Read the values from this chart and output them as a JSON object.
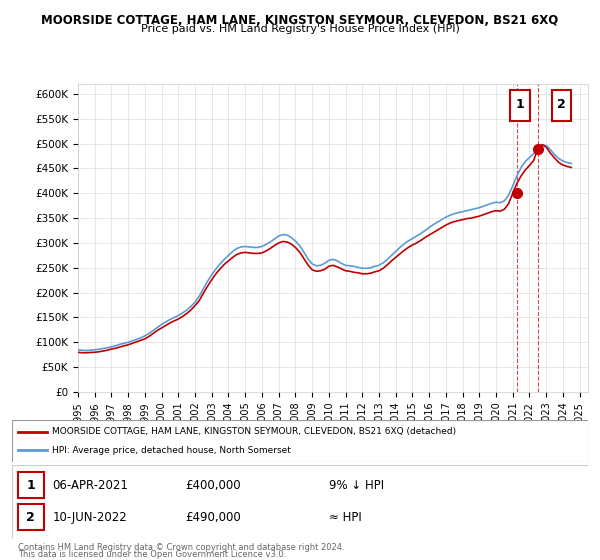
{
  "title": "MOORSIDE COTTAGE, HAM LANE, KINGSTON SEYMOUR, CLEVEDON, BS21 6XQ",
  "subtitle": "Price paid vs. HM Land Registry's House Price Index (HPI)",
  "legend_line1": "MOORSIDE COTTAGE, HAM LANE, KINGSTON SEYMOUR, CLEVEDON, BS21 6XQ (detached)",
  "legend_line2": "HPI: Average price, detached house, North Somerset",
  "sale1_label": "1",
  "sale1_date": "06-APR-2021",
  "sale1_price": "£400,000",
  "sale1_note": "9% ↓ HPI",
  "sale2_label": "2",
  "sale2_date": "10-JUN-2022",
  "sale2_price": "£490,000",
  "sale2_note": "≈ HPI",
  "footer": "Contains HM Land Registry data © Crown copyright and database right 2024.\nThis data is licensed under the Open Government Licence v3.0.",
  "hpi_color": "#5b9bd5",
  "price_color": "#c00000",
  "sale_marker_color": "#c00000",
  "annotation_box_color": "#c00000",
  "ylim": [
    0,
    620000
  ],
  "yticks": [
    0,
    50000,
    100000,
    150000,
    200000,
    250000,
    300000,
    350000,
    400000,
    450000,
    500000,
    550000,
    600000
  ],
  "ytick_labels": [
    "£0",
    "£50K",
    "£100K",
    "£150K",
    "£200K",
    "£250K",
    "£300K",
    "£350K",
    "£400K",
    "£450K",
    "£500K",
    "£550K",
    "£600K"
  ],
  "hpi_years": [
    1995.0,
    1995.25,
    1995.5,
    1995.75,
    1996.0,
    1996.25,
    1996.5,
    1996.75,
    1997.0,
    1997.25,
    1997.5,
    1997.75,
    1998.0,
    1998.25,
    1998.5,
    1998.75,
    1999.0,
    1999.25,
    1999.5,
    1999.75,
    2000.0,
    2000.25,
    2000.5,
    2000.75,
    2001.0,
    2001.25,
    2001.5,
    2001.75,
    2002.0,
    2002.25,
    2002.5,
    2002.75,
    2003.0,
    2003.25,
    2003.5,
    2003.75,
    2004.0,
    2004.25,
    2004.5,
    2004.75,
    2005.0,
    2005.25,
    2005.5,
    2005.75,
    2006.0,
    2006.25,
    2006.5,
    2006.75,
    2007.0,
    2007.25,
    2007.5,
    2007.75,
    2008.0,
    2008.25,
    2008.5,
    2008.75,
    2009.0,
    2009.25,
    2009.5,
    2009.75,
    2010.0,
    2010.25,
    2010.5,
    2010.75,
    2011.0,
    2011.25,
    2011.5,
    2011.75,
    2012.0,
    2012.25,
    2012.5,
    2012.75,
    2013.0,
    2013.25,
    2013.5,
    2013.75,
    2014.0,
    2014.25,
    2014.5,
    2014.75,
    2015.0,
    2015.25,
    2015.5,
    2015.75,
    2016.0,
    2016.25,
    2016.5,
    2016.75,
    2017.0,
    2017.25,
    2017.5,
    2017.75,
    2018.0,
    2018.25,
    2018.5,
    2018.75,
    2019.0,
    2019.25,
    2019.5,
    2019.75,
    2020.0,
    2020.25,
    2020.5,
    2020.75,
    2021.0,
    2021.25,
    2021.5,
    2021.75,
    2022.0,
    2022.25,
    2022.5,
    2022.75,
    2023.0,
    2023.25,
    2023.5,
    2023.75,
    2024.0,
    2024.25,
    2024.5
  ],
  "hpi_values": [
    85000,
    84000,
    83500,
    84000,
    85000,
    86000,
    87500,
    89000,
    91000,
    93000,
    96000,
    98000,
    100000,
    103000,
    106000,
    109000,
    113000,
    118000,
    124000,
    130000,
    136000,
    141000,
    146000,
    150000,
    154000,
    159000,
    165000,
    172000,
    181000,
    193000,
    208000,
    223000,
    236000,
    248000,
    258000,
    267000,
    275000,
    283000,
    289000,
    292000,
    293000,
    292000,
    291000,
    291000,
    293000,
    297000,
    302000,
    308000,
    314000,
    317000,
    316000,
    311000,
    304000,
    295000,
    282000,
    268000,
    258000,
    254000,
    255000,
    259000,
    265000,
    267000,
    264000,
    259000,
    255000,
    254000,
    253000,
    251000,
    249000,
    249000,
    250000,
    253000,
    255000,
    260000,
    267000,
    275000,
    283000,
    291000,
    298000,
    304000,
    309000,
    314000,
    319000,
    325000,
    331000,
    337000,
    342000,
    347000,
    352000,
    356000,
    359000,
    361000,
    363000,
    365000,
    367000,
    369000,
    371000,
    374000,
    377000,
    380000,
    382000,
    381000,
    385000,
    396000,
    415000,
    435000,
    452000,
    464000,
    472000,
    480000,
    490000,
    498000,
    496000,
    488000,
    478000,
    470000,
    465000,
    462000,
    460000
  ],
  "price_years": [
    1995.0,
    1995.25,
    1995.5,
    1995.75,
    1996.0,
    1996.25,
    1996.5,
    1996.75,
    1997.0,
    1997.25,
    1997.5,
    1997.75,
    1998.0,
    1998.25,
    1998.5,
    1998.75,
    1999.0,
    1999.25,
    1999.5,
    1999.75,
    2000.0,
    2000.25,
    2000.5,
    2000.75,
    2001.0,
    2001.25,
    2001.5,
    2001.75,
    2002.0,
    2002.25,
    2002.5,
    2002.75,
    2003.0,
    2003.25,
    2003.5,
    2003.75,
    2004.0,
    2004.25,
    2004.5,
    2004.75,
    2005.0,
    2005.25,
    2005.5,
    2005.75,
    2006.0,
    2006.25,
    2006.5,
    2006.75,
    2007.0,
    2007.25,
    2007.5,
    2007.75,
    2008.0,
    2008.25,
    2008.5,
    2008.75,
    2009.0,
    2009.25,
    2009.5,
    2009.75,
    2010.0,
    2010.25,
    2010.5,
    2010.75,
    2011.0,
    2011.25,
    2011.5,
    2011.75,
    2012.0,
    2012.25,
    2012.5,
    2012.75,
    2013.0,
    2013.25,
    2013.5,
    2013.75,
    2014.0,
    2014.25,
    2014.5,
    2014.75,
    2015.0,
    2015.25,
    2015.5,
    2015.75,
    2016.0,
    2016.25,
    2016.5,
    2016.75,
    2017.0,
    2017.25,
    2017.5,
    2017.75,
    2018.0,
    2018.25,
    2018.5,
    2018.75,
    2019.0,
    2019.25,
    2019.5,
    2019.75,
    2020.0,
    2020.25,
    2020.5,
    2020.75,
    2021.0,
    2021.25,
    2021.5,
    2021.75,
    2022.0,
    2022.25,
    2022.5,
    2022.75,
    2023.0,
    2023.25,
    2023.5,
    2023.75,
    2024.0,
    2024.25,
    2024.5
  ],
  "price_values": [
    80000,
    79000,
    79000,
    79500,
    80000,
    81000,
    82500,
    84000,
    86500,
    88000,
    90500,
    93000,
    95000,
    98000,
    101000,
    104000,
    107000,
    112000,
    118000,
    124000,
    129000,
    134000,
    139000,
    143000,
    147000,
    152000,
    158000,
    165000,
    174000,
    184000,
    199000,
    213000,
    226000,
    238000,
    248000,
    257000,
    264000,
    271000,
    277000,
    280000,
    281000,
    280000,
    279000,
    279000,
    280000,
    284000,
    289000,
    295000,
    300000,
    303000,
    302000,
    298000,
    291000,
    282000,
    269000,
    256000,
    246000,
    243000,
    244000,
    247000,
    253000,
    255000,
    252000,
    248000,
    244000,
    243000,
    241000,
    240000,
    238000,
    238000,
    239000,
    242000,
    244000,
    249000,
    256000,
    264000,
    271000,
    278000,
    285000,
    291000,
    296000,
    300000,
    305000,
    311000,
    316000,
    321000,
    326000,
    331000,
    336000,
    340000,
    343000,
    345000,
    347000,
    349000,
    350000,
    352000,
    354000,
    357000,
    360000,
    363000,
    365000,
    364000,
    368000,
    379000,
    400000,
    420000,
    435000,
    447000,
    456000,
    466000,
    490000,
    498000,
    493000,
    481000,
    471000,
    462000,
    457000,
    454000,
    452000
  ],
  "sale1_x": 2021.25,
  "sale1_y": 400000,
  "sale2_x": 2022.5,
  "sale2_y": 490000,
  "xlim": [
    1995,
    2025.5
  ],
  "xtick_years": [
    1995,
    1996,
    1997,
    1998,
    1999,
    2000,
    2001,
    2002,
    2003,
    2004,
    2005,
    2006,
    2007,
    2008,
    2009,
    2010,
    2011,
    2012,
    2013,
    2014,
    2015,
    2016,
    2017,
    2018,
    2019,
    2020,
    2021,
    2022,
    2023,
    2024,
    2025
  ]
}
